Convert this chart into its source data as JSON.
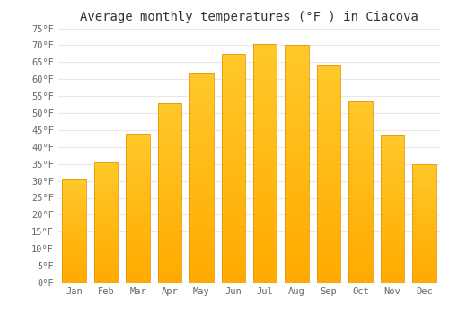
{
  "title": "Average monthly temperatures (°F ) in Ciacova",
  "months": [
    "Jan",
    "Feb",
    "Mar",
    "Apr",
    "May",
    "Jun",
    "Jul",
    "Aug",
    "Sep",
    "Oct",
    "Nov",
    "Dec"
  ],
  "values": [
    30.5,
    35.5,
    44.0,
    53.0,
    62.0,
    67.5,
    70.5,
    70.0,
    64.0,
    53.5,
    43.5,
    35.0
  ],
  "bar_color_top": "#FFC82A",
  "bar_color_bottom": "#FFAA00",
  "bar_edge_color": "#E8960A",
  "ylim": [
    0,
    75
  ],
  "background_color": "#ffffff",
  "grid_color": "#e8e8e8",
  "title_fontsize": 10,
  "tick_fontsize": 7.5,
  "ytick_label_color": "#666666",
  "xtick_label_color": "#666666"
}
